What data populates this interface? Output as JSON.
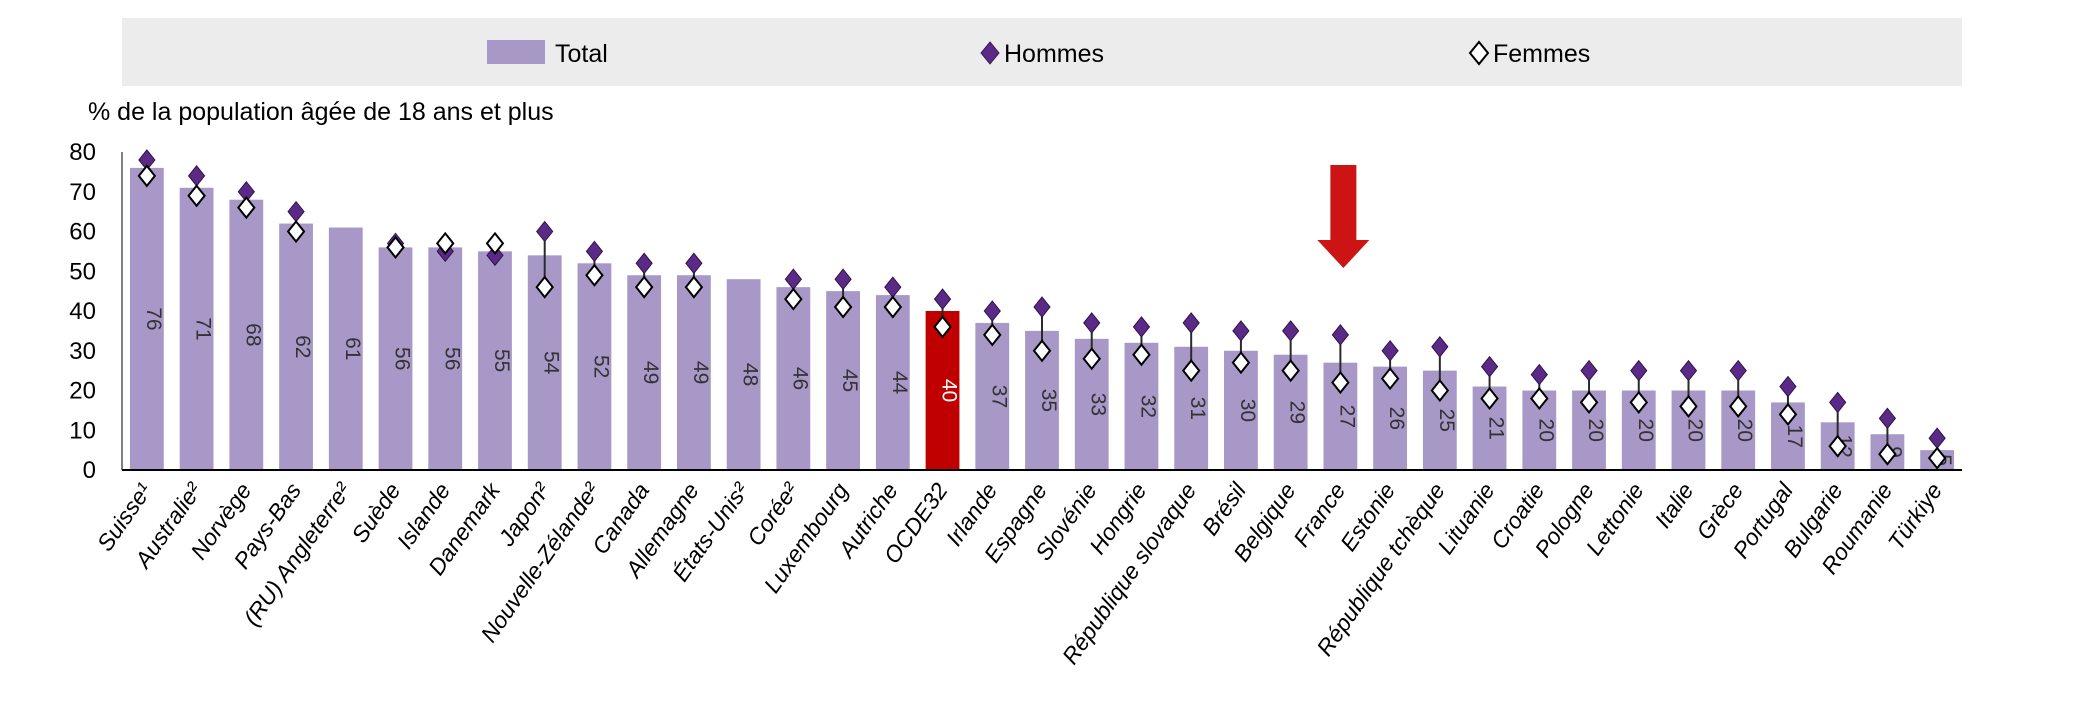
{
  "chart_data": {
    "type": "bar",
    "ylabel": "% de la population âgée de 18 ans et plus",
    "ylim": [
      0,
      80
    ],
    "yticks": [
      0,
      10,
      20,
      30,
      40,
      50,
      60,
      70,
      80
    ],
    "legend": {
      "placement": "top",
      "items": [
        "Total",
        "Hommes",
        "Femmes"
      ]
    },
    "categories": [
      "Suisse¹",
      "Australie²",
      "Norvège",
      "Pays-Bas",
      "(RU) Angleterre²",
      "Suède",
      "Islande",
      "Danemark",
      "Japon²",
      "Nouvelle-Zélande²",
      "Canada",
      "Allemagne",
      "États-Unis²",
      "Corée²",
      "Luxembourg",
      "Autriche",
      "OCDE32",
      "Irlande",
      "Espagne",
      "Slovénie",
      "Hongrie",
      "République slovaque",
      "Brésil",
      "Belgique",
      "France",
      "Estonie",
      "République tchèque",
      "Lituanie",
      "Croatie",
      "Pologne",
      "Lettonie",
      "Italie",
      "Grèce",
      "Portugal",
      "Bulgarie",
      "Roumanie",
      "Türkiye"
    ],
    "series": [
      {
        "name": "Total",
        "values": [
          76,
          71,
          68,
          62,
          61,
          56,
          56,
          55,
          54,
          52,
          49,
          49,
          48,
          46,
          45,
          44,
          40,
          37,
          35,
          33,
          32,
          31,
          30,
          29,
          27,
          26,
          25,
          21,
          20,
          20,
          20,
          20,
          20,
          17,
          12,
          9,
          5
        ]
      },
      {
        "name": "Hommes",
        "values": [
          78,
          74,
          70,
          65,
          null,
          57,
          55,
          54,
          60,
          55,
          52,
          52,
          null,
          48,
          48,
          46,
          43,
          40,
          41,
          37,
          36,
          37,
          35,
          35,
          34,
          30,
          31,
          26,
          24,
          25,
          25,
          25,
          25,
          21,
          17,
          13,
          8
        ]
      },
      {
        "name": "Femmes",
        "values": [
          74,
          69,
          66,
          60,
          null,
          56,
          57,
          57,
          46,
          49,
          46,
          46,
          null,
          43,
          41,
          41,
          36,
          34,
          30,
          28,
          29,
          25,
          27,
          25,
          22,
          23,
          20,
          18,
          18,
          17,
          17,
          16,
          16,
          14,
          6,
          4,
          3
        ]
      }
    ],
    "value_labels": [
      "76",
      "71",
      "68",
      "62",
      "61",
      "56",
      "56",
      "55",
      "54",
      "52",
      "49",
      "49",
      "48",
      "46",
      "45",
      "44",
      "40",
      "37",
      "35",
      "33",
      "32",
      "31",
      "30",
      "29",
      "27",
      "26",
      "25",
      "21",
      "20",
      "20",
      "20",
      "20",
      "20",
      "17",
      "12",
      "9",
      "5"
    ],
    "highlight_category": "OCDE32",
    "annotation": {
      "type": "arrow",
      "target": "France"
    },
    "colors": {
      "total": "#a898c8",
      "highlight": "#c00000",
      "hommes": "#5b2a86",
      "femmes": "#ffffff",
      "legend_bg": "#ececec",
      "arrow": "#cc1414"
    }
  }
}
